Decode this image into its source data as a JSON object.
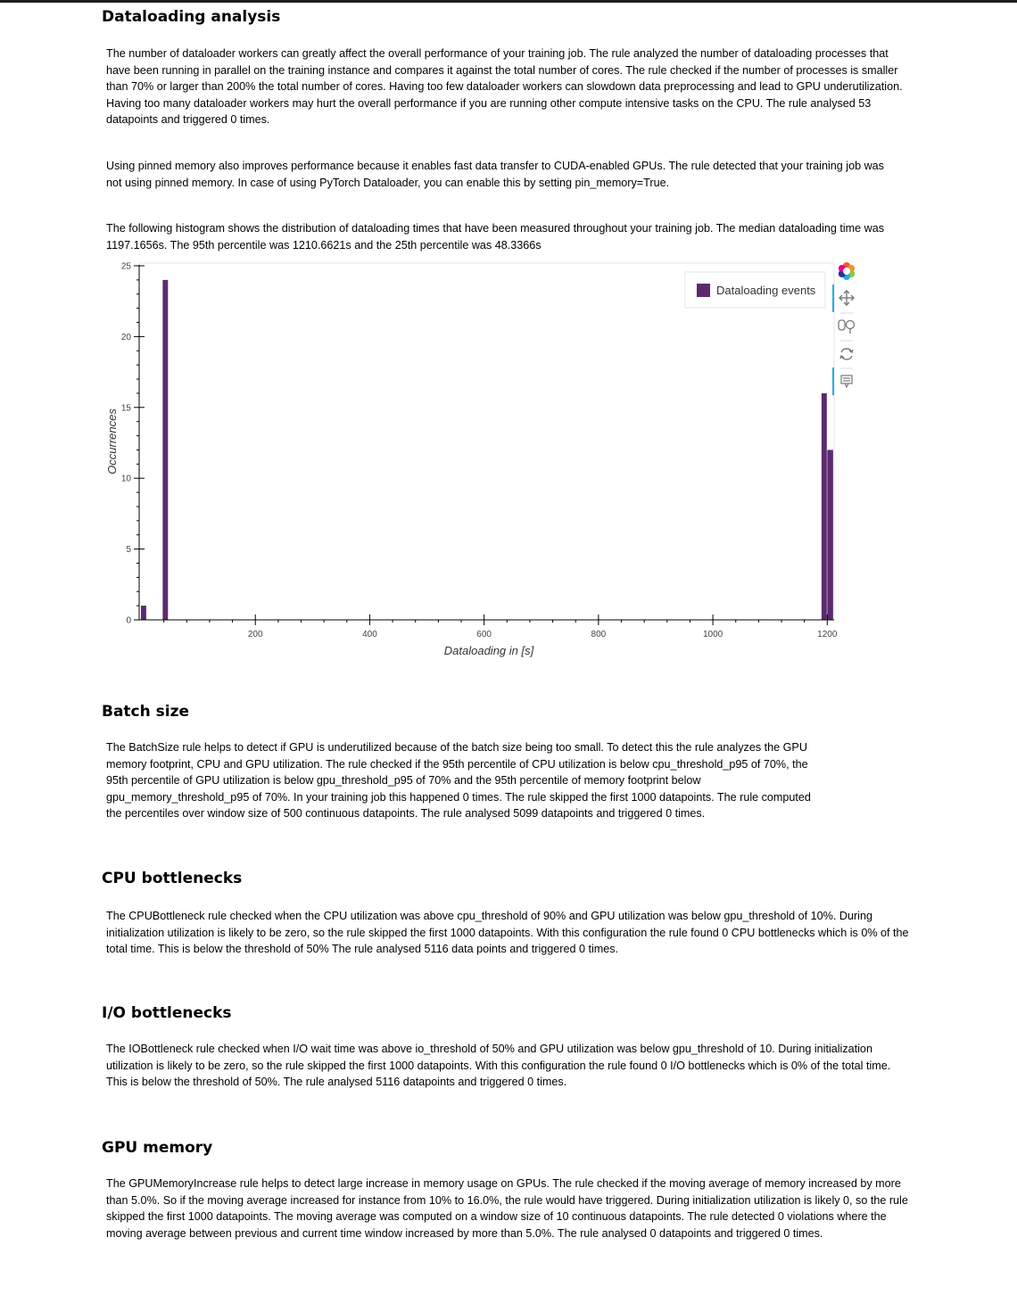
{
  "sections": {
    "dataloading": {
      "title": "Dataloading analysis",
      "p1": "The number of dataloader workers can greatly affect the overall performance of your training job. The rule analyzed the number of dataloading processes that have been running in parallel on the training instance and compares it against the total number of cores. The rule checked if the number of processes is smaller than 70% or larger than 200% the total number of cores. Having too few dataloader workers can slowdown data preprocessing and lead to GPU underutilization. Having too many dataloader workers may hurt the overall performance if you are running other compute intensive tasks on the CPU. The rule analysed 53 datapoints and triggered 0 times.",
      "p2": "Using pinned memory also improves performance because it enables fast data transfer to CUDA-enabled GPUs. The rule detected that your training job was not using pinned memory. In case of using PyTorch Dataloader, you can enable this by setting pin_memory=True.",
      "p3": "The following histogram shows the distribution of dataloading times that have been measured throughout your training job. The median dataloading time was 1197.1656s. The 95th percentile was 1210.6621s and the 25th percentile was 48.3366s"
    },
    "batch": {
      "title": "Batch size",
      "p1": "The BatchSize rule helps to detect if GPU is underutilized because of the batch size being too small. To detect this the rule analyzes the GPU memory footprint, CPU and GPU utilization. The rule checked if the 95th percentile of CPU utilization is below cpu_threshold_p95 of 70%, the 95th percentile of GPU utilization is below gpu_threshold_p95 of 70% and the 95th percentile of memory footprint below gpu_memory_threshold_p95 of 70%. In your training job this happened 0 times. The rule skipped the first 1000 datapoints. The rule computed the percentiles over window size of 500 continuous datapoints. The rule analysed 5099 datapoints and triggered 0 times."
    },
    "cpu": {
      "title": "CPU bottlenecks",
      "p1": "The CPUBottleneck rule checked when the CPU utilization was above cpu_threshold of 90% and GPU utilization was below gpu_threshold of 10%. During initialization utilization is likely to be zero, so the rule skipped the first 1000 datapoints. With this configuration the rule found 0 CPU bottlenecks which is 0% of the total time. This is below the threshold of 50% The rule analysed 5116 data points and triggered 0 times."
    },
    "io": {
      "title": "I/O bottlenecks",
      "p1": "The IOBottleneck rule checked when I/O wait time was above io_threshold of 50% and GPU utilization was below gpu_threshold of 10. During initialization utilization is likely to be zero, so the rule skipped the first 1000 datapoints. With this configuration the rule found 0 I/O bottlenecks which is 0% of the total time. This is below the threshold of 50%. The rule analysed 5116 datapoints and triggered 0 times."
    },
    "gpu": {
      "title": "GPU memory",
      "p1": "The GPUMemoryIncrease rule helps to detect large increase in memory usage on GPUs. The rule checked if the moving average of memory increased by more than 5.0%. So if the moving average increased for instance from 10% to 16.0%, the rule would have triggered. During initialization utilization is likely 0, so the rule skipped the first 1000 datapoints. The moving average was computed on a window size of 10 continuous datapoints. The rule detected 0 violations where the moving average between previous and current time window increased by more than 5.0%. The rule analysed 0 datapoints and triggered 0 times."
    }
  },
  "chart_data": {
    "type": "bar",
    "title": "",
    "xlabel": "Dataloading in [s]",
    "ylabel": "Occurrences",
    "xlim": [
      0,
      1212
    ],
    "ylim": [
      0,
      25
    ],
    "x_ticks": [
      200,
      400,
      600,
      800,
      1000,
      1200
    ],
    "y_ticks": [
      0,
      5,
      10,
      15,
      20,
      25
    ],
    "grid": false,
    "legend_position": "top-right",
    "color": "#5b2a6e",
    "series": [
      {
        "name": "Dataloading events",
        "bins": [
          {
            "start": 0,
            "end": 10,
            "count": 1
          },
          {
            "start": 38,
            "end": 48,
            "count": 24
          },
          {
            "start": 1190,
            "end": 1200,
            "count": 16
          },
          {
            "start": 1200,
            "end": 1211,
            "count": 12
          }
        ]
      }
    ]
  },
  "toolbar": {
    "tools": [
      {
        "name": "bokeh-logo-icon",
        "active": false
      },
      {
        "name": "pan-tool-icon",
        "active": true
      },
      {
        "name": "box-zoom-tool-icon",
        "active": false
      },
      {
        "name": "reset-tool-icon",
        "active": false
      },
      {
        "name": "hover-tool-icon",
        "active": true
      }
    ]
  }
}
